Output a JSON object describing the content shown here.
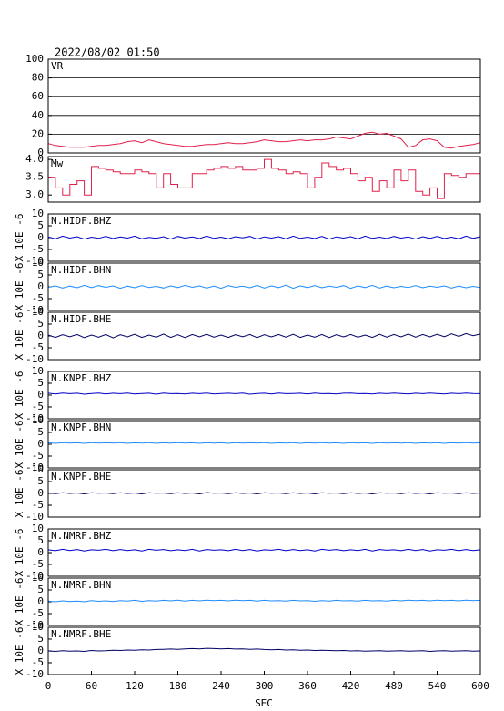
{
  "chart_data": {
    "type": "multi-panel",
    "title": "2022/08/02 01:50",
    "xlabel": "SEC",
    "xlim": [
      0,
      600
    ],
    "xticks": [
      0,
      60,
      120,
      180,
      240,
      300,
      360,
      420,
      480,
      540,
      600
    ],
    "x": [
      0,
      10,
      20,
      30,
      40,
      50,
      60,
      70,
      80,
      90,
      100,
      110,
      120,
      130,
      140,
      150,
      160,
      170,
      180,
      190,
      200,
      210,
      220,
      230,
      240,
      250,
      260,
      270,
      280,
      290,
      300,
      310,
      320,
      330,
      340,
      350,
      360,
      370,
      380,
      390,
      400,
      410,
      420,
      430,
      440,
      450,
      460,
      470,
      480,
      490,
      500,
      510,
      520,
      530,
      540,
      550,
      560,
      570,
      580,
      590,
      600
    ],
    "panels": [
      {
        "type": "line",
        "label": "VR",
        "color": "#e0204a",
        "grid": true,
        "ylim": [
          0,
          100
        ],
        "yticks": [
          0,
          20,
          40,
          60,
          80,
          100
        ],
        "values": [
          10,
          8,
          7,
          6,
          6,
          6,
          7,
          8,
          8,
          9,
          10,
          12,
          13,
          11,
          14,
          12,
          10,
          9,
          8,
          7,
          7,
          8,
          9,
          9,
          10,
          11,
          10,
          10,
          11,
          12,
          14,
          13,
          12,
          12,
          13,
          14,
          13,
          14,
          14,
          15,
          17,
          16,
          15,
          18,
          21,
          22,
          20,
          21,
          18,
          15,
          6,
          8,
          14,
          15,
          13,
          6,
          5,
          7,
          8,
          9,
          11
        ]
      },
      {
        "type": "step",
        "label": "Mw",
        "color": "#e0204a",
        "ylim": [
          2.8,
          4.08
        ],
        "yticks": [
          {
            "value": 3,
            "label": "3.0"
          },
          3.5,
          {
            "value": 4,
            "label": "4.0"
          }
        ],
        "values": [
          3.5,
          3.2,
          3.0,
          3.3,
          3.4,
          3.0,
          3.8,
          3.75,
          3.7,
          3.65,
          3.6,
          3.6,
          3.7,
          3.65,
          3.6,
          3.2,
          3.6,
          3.3,
          3.2,
          3.2,
          3.6,
          3.6,
          3.7,
          3.75,
          3.8,
          3.75,
          3.8,
          3.7,
          3.7,
          3.75,
          4.0,
          3.75,
          3.7,
          3.6,
          3.65,
          3.6,
          3.2,
          3.5,
          3.9,
          3.8,
          3.7,
          3.75,
          3.6,
          3.4,
          3.5,
          3.1,
          3.4,
          3.2,
          3.7,
          3.4,
          3.7,
          3.1,
          3.0,
          3.2,
          2.9,
          3.6,
          3.55,
          3.5,
          3.6,
          3.6,
          3.6
        ]
      },
      {
        "type": "line",
        "label": "N.HIDF.BHZ",
        "ylabel": "X 10E -6",
        "color": "#0000c8",
        "ylim": [
          -10,
          10
        ],
        "yticks": [
          -10,
          -5,
          0,
          5,
          10
        ],
        "values": [
          0.3,
          -0.5,
          0.6,
          -0.2,
          0.4,
          -0.6,
          0.2,
          -0.3,
          0.5,
          -0.4,
          0.3,
          -0.2,
          0.6,
          -0.5,
          0.1,
          -0.3,
          0.4,
          -0.6,
          0.5,
          -0.2,
          0.3,
          -0.4,
          0.6,
          -0.3,
          0.2,
          -0.5,
          0.4,
          -0.1,
          0.5,
          -0.6,
          0.3,
          -0.2,
          0.4,
          -0.5,
          0.6,
          -0.3,
          0.2,
          -0.4,
          0.5,
          -0.6,
          0.3,
          -0.2,
          0.4,
          -0.5,
          0.6,
          -0.3,
          0.2,
          -0.4,
          0.5,
          -0.2,
          0.3,
          -0.6,
          0.4,
          -0.3,
          0.5,
          -0.4,
          0.2,
          -0.5,
          0.6,
          -0.3,
          0.4
        ]
      },
      {
        "type": "line",
        "label": "N.HIDF.BHN",
        "ylabel": "X 10E -6",
        "color": "#1e8cff",
        "ylim": [
          -10,
          10
        ],
        "yticks": [
          -10,
          -5,
          0,
          5,
          10
        ],
        "values": [
          -0.2,
          0.4,
          -0.5,
          0.3,
          -0.4,
          0.6,
          -0.3,
          0.5,
          -0.2,
          0.4,
          -0.6,
          0.3,
          -0.4,
          0.5,
          -0.3,
          0.2,
          -0.5,
          0.4,
          -0.3,
          0.6,
          -0.2,
          0.4,
          -0.5,
          0.3,
          -0.6,
          0.5,
          -0.2,
          0.3,
          -0.4,
          0.6,
          -0.5,
          0.4,
          -0.3,
          0.7,
          -0.6,
          0.4,
          -0.3,
          0.5,
          -0.4,
          0.3,
          -0.2,
          0.5,
          -0.6,
          0.4,
          -0.3,
          0.6,
          -0.5,
          0.3,
          -0.4,
          0.2,
          -0.3,
          0.5,
          -0.4,
          0.3,
          -0.2,
          0.4,
          -0.5,
          0.3,
          -0.4,
          0.2,
          -0.3
        ]
      },
      {
        "type": "line",
        "label": "N.HIDF.BHE",
        "ylabel": "X 10E -6",
        "color": "#000064",
        "ylim": [
          -10,
          10
        ],
        "yticks": [
          -10,
          -5,
          0,
          5,
          10
        ],
        "values": [
          0.4,
          -0.6,
          0.5,
          -0.3,
          0.6,
          -0.7,
          0.4,
          -0.5,
          0.6,
          -0.8,
          0.5,
          -0.4,
          0.7,
          -0.6,
          0.4,
          -0.5,
          0.8,
          -0.6,
          0.5,
          -0.7,
          0.6,
          -0.4,
          0.7,
          -0.5,
          0.4,
          -0.6,
          0.5,
          -0.3,
          0.6,
          -0.7,
          0.5,
          -0.4,
          0.6,
          -0.5,
          0.7,
          -0.6,
          0.4,
          -0.5,
          0.6,
          -0.7,
          0.5,
          -0.4,
          0.6,
          -0.5,
          0.4,
          -0.6,
          0.7,
          -0.5,
          0.6,
          -0.4,
          0.8,
          -0.5,
          0.6,
          -0.4,
          0.7,
          -0.3,
          0.9,
          -0.2,
          1.0,
          0.1,
          0.8
        ]
      },
      {
        "type": "line",
        "label": "N.KNPF.BHZ",
        "ylabel": "X 10E -6",
        "color": "#0000c8",
        "ylim": [
          -10,
          10
        ],
        "yticks": [
          -10,
          -5,
          0,
          5,
          10
        ],
        "values": [
          0.8,
          0.5,
          0.9,
          0.6,
          0.8,
          0.4,
          0.7,
          0.9,
          0.5,
          0.8,
          0.6,
          0.9,
          0.5,
          0.7,
          0.8,
          0.4,
          0.9,
          0.6,
          0.7,
          0.5,
          0.8,
          0.6,
          0.9,
          0.5,
          0.7,
          0.8,
          0.6,
          0.9,
          0.4,
          0.7,
          0.8,
          0.5,
          0.9,
          0.6,
          0.7,
          0.8,
          0.5,
          0.9,
          0.6,
          0.7,
          0.5,
          0.8,
          0.9,
          0.6,
          0.7,
          0.5,
          0.8,
          0.6,
          0.9,
          0.7,
          0.5,
          0.8,
          0.6,
          0.9,
          0.7,
          0.5,
          0.8,
          0.6,
          0.9,
          0.7,
          0.6
        ]
      },
      {
        "type": "line",
        "label": "N.KNPF.BHN",
        "ylabel": "X 10E -6",
        "color": "#1e8cff",
        "ylim": [
          -10,
          10
        ],
        "yticks": [
          -10,
          -5,
          0,
          5,
          10
        ],
        "values": [
          0.6,
          0.4,
          0.7,
          0.5,
          0.6,
          0.4,
          0.7,
          0.5,
          0.6,
          0.5,
          0.7,
          0.4,
          0.6,
          0.5,
          0.7,
          0.4,
          0.6,
          0.5,
          0.7,
          0.5,
          0.6,
          0.4,
          0.7,
          0.5,
          0.6,
          0.4,
          0.7,
          0.5,
          0.6,
          0.5,
          0.7,
          0.4,
          0.6,
          0.5,
          0.7,
          0.4,
          0.6,
          0.5,
          0.7,
          0.5,
          0.6,
          0.4,
          0.7,
          0.5,
          0.6,
          0.4,
          0.7,
          0.5,
          0.6,
          0.5,
          0.7,
          0.4,
          0.6,
          0.5,
          0.7,
          0.4,
          0.6,
          0.5,
          0.7,
          0.5,
          0.6
        ]
      },
      {
        "type": "line",
        "label": "N.KNPF.BHE",
        "ylabel": "X 10E -6",
        "color": "#000064",
        "ylim": [
          -10,
          10
        ],
        "yticks": [
          -10,
          -5,
          0,
          5,
          10
        ],
        "values": [
          0.2,
          -0.1,
          0.3,
          0.0,
          0.2,
          -0.2,
          0.3,
          0.1,
          0.2,
          -0.1,
          0.3,
          0.0,
          0.2,
          -0.2,
          0.3,
          0.1,
          0.2,
          -0.1,
          0.3,
          0.0,
          0.2,
          -0.2,
          0.4,
          0.1,
          0.2,
          -0.1,
          0.3,
          0.0,
          0.2,
          -0.2,
          0.3,
          0.1,
          0.2,
          -0.1,
          0.3,
          0.0,
          0.2,
          -0.2,
          0.3,
          0.1,
          0.2,
          -0.1,
          0.3,
          0.0,
          0.2,
          -0.2,
          0.3,
          0.1,
          0.2,
          -0.1,
          0.3,
          0.0,
          0.2,
          -0.2,
          0.3,
          0.1,
          0.2,
          -0.1,
          0.3,
          0.0,
          0.2
        ]
      },
      {
        "type": "line",
        "label": "N.NMRF.BHZ",
        "ylabel": "X 10E -6",
        "color": "#0000c8",
        "ylim": [
          -10,
          10
        ],
        "yticks": [
          -10,
          -5,
          0,
          5,
          10
        ],
        "values": [
          1.2,
          0.8,
          1.4,
          0.9,
          1.3,
          0.7,
          1.2,
          1.0,
          1.4,
          0.8,
          1.3,
          0.9,
          1.2,
          0.7,
          1.4,
          1.0,
          1.3,
          0.8,
          1.2,
          0.9,
          1.4,
          0.7,
          1.3,
          1.0,
          1.2,
          0.8,
          1.4,
          0.9,
          1.3,
          0.7,
          1.2,
          1.0,
          1.4,
          0.8,
          1.3,
          0.9,
          1.2,
          0.7,
          1.4,
          1.0,
          1.3,
          0.8,
          1.2,
          0.9,
          1.4,
          0.7,
          1.3,
          1.0,
          1.2,
          0.8,
          1.4,
          0.9,
          1.3,
          0.7,
          1.2,
          1.0,
          1.4,
          0.8,
          1.3,
          0.9,
          1.2
        ]
      },
      {
        "type": "line",
        "label": "N.NMRF.BHN",
        "ylabel": "X 10E -6",
        "color": "#1e8cff",
        "ylim": [
          -10,
          10
        ],
        "yticks": [
          -10,
          -5,
          0,
          5,
          10
        ],
        "values": [
          0.3,
          0.0,
          0.4,
          0.1,
          0.3,
          0.0,
          0.5,
          0.2,
          0.4,
          0.1,
          0.5,
          0.3,
          0.6,
          0.2,
          0.5,
          0.3,
          0.6,
          0.4,
          0.7,
          0.3,
          0.6,
          0.4,
          0.7,
          0.5,
          0.6,
          0.4,
          0.7,
          0.5,
          0.6,
          0.3,
          0.6,
          0.4,
          0.5,
          0.3,
          0.6,
          0.4,
          0.5,
          0.2,
          0.5,
          0.3,
          0.6,
          0.4,
          0.5,
          0.3,
          0.6,
          0.4,
          0.5,
          0.3,
          0.6,
          0.4,
          0.7,
          0.5,
          0.6,
          0.4,
          0.7,
          0.5,
          0.6,
          0.4,
          0.7,
          0.5,
          0.6
        ]
      },
      {
        "type": "line",
        "label": "N.NMRF.BHE",
        "ylabel": "X 10E -6",
        "color": "#000064",
        "ylim": [
          -10,
          10
        ],
        "yticks": [
          -10,
          -5,
          0,
          5,
          10
        ],
        "values": [
          0.0,
          -0.2,
          0.1,
          -0.1,
          0.0,
          -0.2,
          0.2,
          0.0,
          0.1,
          0.3,
          0.2,
          0.4,
          0.3,
          0.5,
          0.4,
          0.6,
          0.7,
          0.8,
          0.7,
          0.9,
          1.0,
          0.9,
          1.1,
          1.0,
          0.9,
          1.0,
          0.8,
          0.9,
          0.7,
          0.8,
          0.6,
          0.5,
          0.6,
          0.4,
          0.5,
          0.3,
          0.4,
          0.2,
          0.3,
          0.2,
          0.1,
          0.2,
          0.0,
          0.1,
          -0.1,
          0.0,
          0.1,
          -0.1,
          0.0,
          0.1,
          -0.1,
          0.0,
          0.1,
          -0.2,
          0.0,
          0.1,
          -0.1,
          0.0,
          0.1,
          -0.1,
          0.0
        ]
      }
    ]
  }
}
